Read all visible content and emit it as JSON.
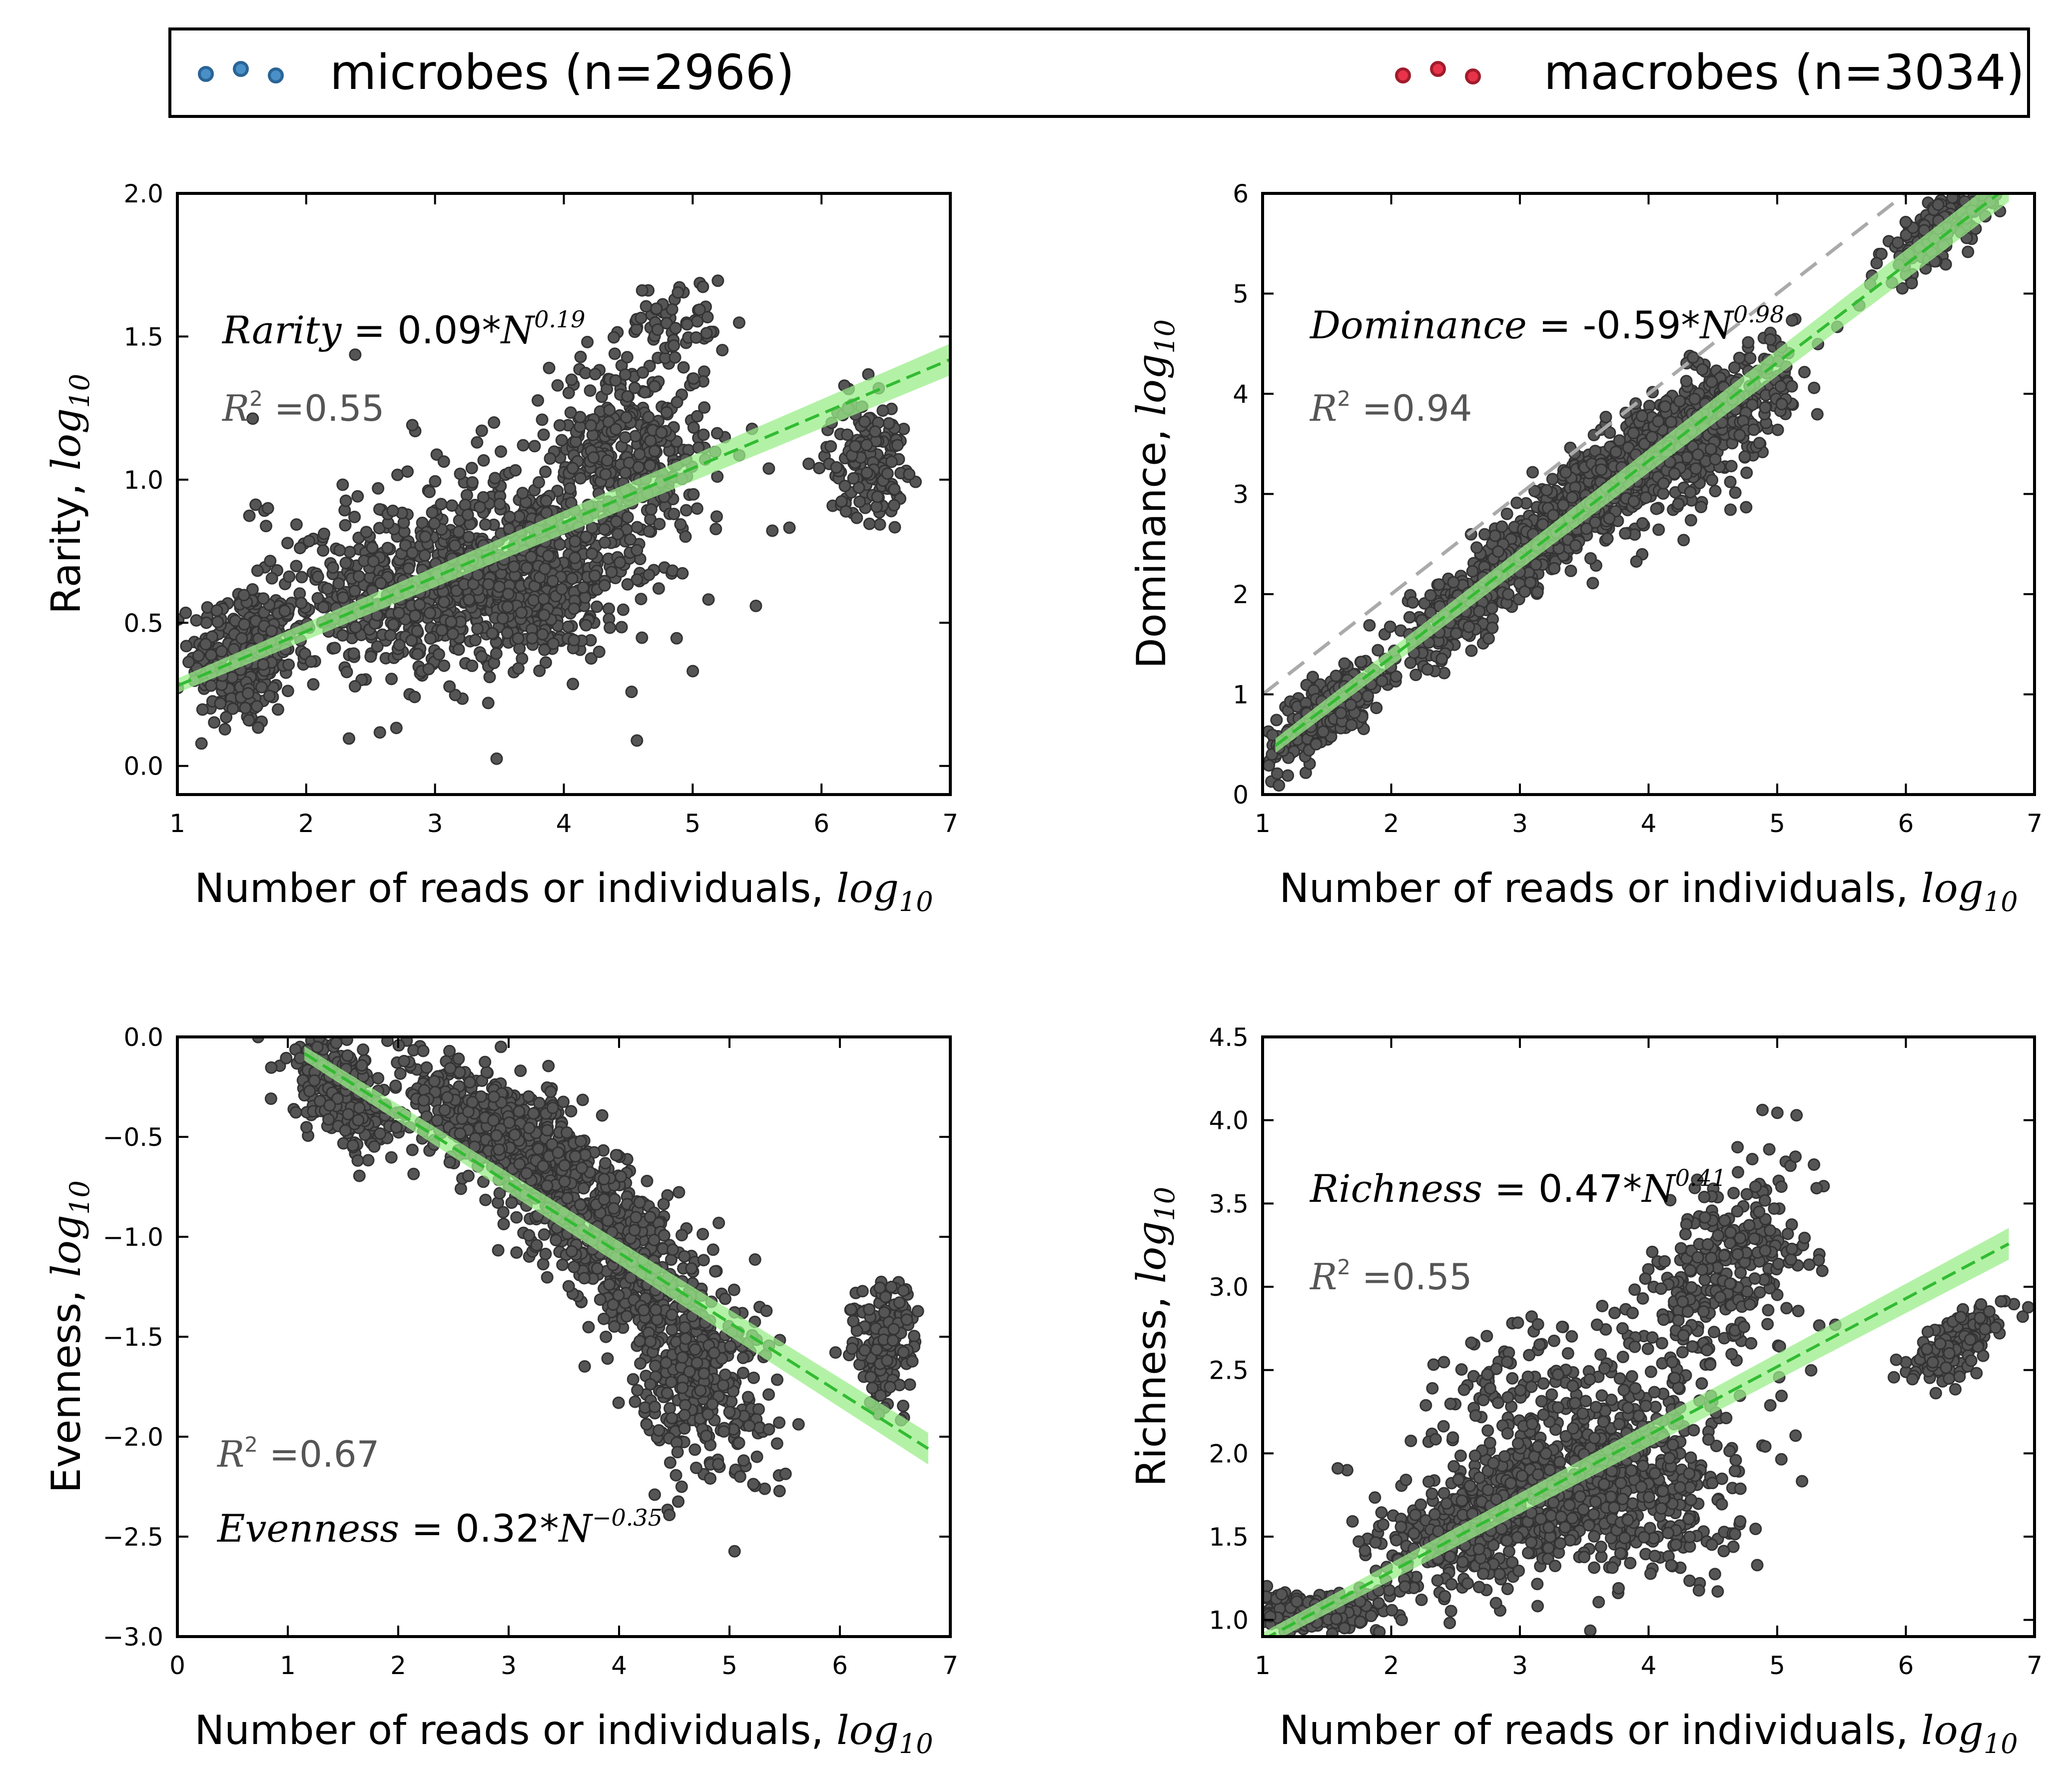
{
  "legend": {
    "items": [
      {
        "label": "microbes (n=2966)",
        "color": "#4a90c8",
        "edge": "#2a6496"
      },
      {
        "label": "macrobes (n=3034)",
        "color": "#e8334a",
        "edge": "#a01c2c"
      }
    ]
  },
  "colors": {
    "points": "#555555",
    "points_edge": "#333333",
    "fit_line": "#33bb33",
    "fit_band": "#99ee88",
    "reference_line": "#aaaaaa"
  },
  "panels": [
    {
      "id": "rarity",
      "xlabel_text": "Number of reads or individuals,",
      "xlabel_math": "log",
      "xlabel_sub": "10",
      "ylabel_text": "Rarity,",
      "ylabel_math": "log",
      "ylabel_sub": "10",
      "equation": {
        "var": "Rarity",
        "rhs": " = 0.09*",
        "base": "N",
        "exp": "0.19"
      },
      "r2": {
        "label": "R",
        "sup": "2",
        "value": " =0.55"
      }
    },
    {
      "id": "dominance",
      "xlabel_text": "Number of reads or individuals,",
      "xlabel_math": "log",
      "xlabel_sub": "10",
      "ylabel_text": "Dominance,",
      "ylabel_math": "log",
      "ylabel_sub": "10",
      "equation": {
        "var": "Dominance",
        "rhs": " = -0.59*",
        "base": "N",
        "exp": "0.98"
      },
      "r2": {
        "label": "R",
        "sup": "2",
        "value": " =0.94"
      }
    },
    {
      "id": "evenness",
      "xlabel_text": "Number of reads or individuals,",
      "xlabel_math": "log",
      "xlabel_sub": "10",
      "ylabel_text": "Evenness,",
      "ylabel_math": "log",
      "ylabel_sub": "10",
      "equation": {
        "var": "Evenness",
        "rhs": " = 0.32*",
        "base": "N",
        "exp": "−0.35"
      },
      "r2": {
        "label": "R",
        "sup": "2",
        "value": " =0.67"
      }
    },
    {
      "id": "richness",
      "xlabel_text": "Number of reads or individuals,",
      "xlabel_math": "log",
      "xlabel_sub": "10",
      "ylabel_text": "Richness,",
      "ylabel_math": "log",
      "ylabel_sub": "10",
      "equation": {
        "var": "Richness",
        "rhs": " = 0.47*",
        "base": "N",
        "exp": "0.41"
      },
      "r2": {
        "label": "R",
        "sup": "2",
        "value": " =0.55"
      }
    }
  ],
  "chart_data": [
    {
      "type": "scatter",
      "panel": "rarity",
      "xlim": [
        1,
        7
      ],
      "ylim": [
        -0.1,
        2.0
      ],
      "xticks": [
        "1",
        "2",
        "3",
        "4",
        "5",
        "6",
        "7"
      ],
      "xtick_values": [
        1,
        2,
        3,
        4,
        5,
        6,
        7
      ],
      "yticks": [
        "0.0",
        "0.5",
        "1.0",
        "1.5",
        "2.0"
      ],
      "ytick_values": [
        0.0,
        0.5,
        1.0,
        1.5,
        2.0
      ],
      "fit": {
        "slope": 0.19,
        "intercept": 0.09,
        "x_range": [
          1.0,
          7.0
        ]
      },
      "reference_line": null,
      "clusters": [
        {
          "cx": 1.5,
          "cy": 0.38,
          "sx": 0.2,
          "sy": 0.13,
          "n": 280
        },
        {
          "cx": 2.8,
          "cy": 0.58,
          "sx": 0.45,
          "sy": 0.12,
          "n": 420
        },
        {
          "cx": 3.7,
          "cy": 0.68,
          "sx": 0.4,
          "sy": 0.15,
          "n": 520
        },
        {
          "cx": 4.5,
          "cy": 1.1,
          "sx": 0.3,
          "sy": 0.18,
          "n": 380
        },
        {
          "cx": 4.9,
          "cy": 1.55,
          "sx": 0.18,
          "sy": 0.08,
          "n": 50
        },
        {
          "cx": 6.35,
          "cy": 1.08,
          "sx": 0.15,
          "sy": 0.1,
          "n": 170
        },
        {
          "cx": 3.4,
          "cy": 0.75,
          "sx": 0.9,
          "sy": 0.25,
          "n": 220
        }
      ]
    },
    {
      "type": "scatter",
      "panel": "dominance",
      "xlim": [
        1,
        7
      ],
      "ylim": [
        0,
        6
      ],
      "xticks": [
        "1",
        "2",
        "3",
        "4",
        "5",
        "6",
        "7"
      ],
      "xtick_values": [
        1,
        2,
        3,
        4,
        5,
        6,
        7
      ],
      "yticks": [
        "0",
        "1",
        "2",
        "3",
        "4",
        "5",
        "6"
      ],
      "ytick_values": [
        0,
        1,
        2,
        3,
        4,
        5,
        6
      ],
      "fit": {
        "slope": 0.98,
        "intercept": -0.59,
        "x_range": [
          1.1,
          6.8
        ]
      },
      "reference_line": {
        "slope": 1.0,
        "intercept": 0.0,
        "x_range": [
          1.0,
          6.1
        ]
      },
      "clusters": [
        {
          "cx": 1.5,
          "cy": 0.85,
          "sx": 0.25,
          "sy": 0.18,
          "slope": 0.95,
          "n": 260
        },
        {
          "cx": 2.6,
          "cy": 1.9,
          "sx": 0.3,
          "sy": 0.2,
          "slope": 0.95,
          "n": 300
        },
        {
          "cx": 3.5,
          "cy": 2.95,
          "sx": 0.45,
          "sy": 0.22,
          "slope": 0.98,
          "n": 650
        },
        {
          "cx": 4.4,
          "cy": 3.6,
          "sx": 0.35,
          "sy": 0.3,
          "slope": 0.9,
          "n": 500
        },
        {
          "cx": 6.3,
          "cy": 5.7,
          "sx": 0.25,
          "sy": 0.18,
          "slope": 0.9,
          "n": 170
        }
      ]
    },
    {
      "type": "scatter",
      "panel": "evenness",
      "xlim": [
        0,
        7
      ],
      "ylim": [
        -3.0,
        0.0
      ],
      "xticks": [
        "0",
        "1",
        "2",
        "3",
        "4",
        "5",
        "6",
        "7"
      ],
      "xtick_values": [
        0,
        1,
        2,
        3,
        4,
        5,
        6,
        7
      ],
      "yticks": [
        "0.0",
        "−0.5",
        "−1.0",
        "−1.5",
        "−2.0",
        "−2.5",
        "−3.0"
      ],
      "ytick_values": [
        0.0,
        -0.5,
        -1.0,
        -1.5,
        -2.0,
        -2.5,
        -3.0
      ],
      "fit": {
        "slope": -0.35,
        "intercept": 0.32,
        "x_range": [
          1.15,
          6.8
        ]
      },
      "reference_line": null,
      "clusters": [
        {
          "cx": 1.5,
          "cy": -0.3,
          "sx": 0.25,
          "sy": 0.12,
          "slope": -0.35,
          "n": 260
        },
        {
          "cx": 3.0,
          "cy": -0.5,
          "sx": 0.5,
          "sy": 0.14,
          "slope": -0.3,
          "n": 620
        },
        {
          "cx": 4.0,
          "cy": -1.05,
          "sx": 0.45,
          "sy": 0.2,
          "slope": -0.35,
          "n": 520
        },
        {
          "cx": 4.7,
          "cy": -1.75,
          "sx": 0.35,
          "sy": 0.22,
          "slope": -0.2,
          "n": 320
        },
        {
          "cx": 6.4,
          "cy": -1.55,
          "sx": 0.15,
          "sy": 0.16,
          "slope": 0,
          "n": 170
        }
      ]
    },
    {
      "type": "scatter",
      "panel": "richness",
      "xlim": [
        1,
        7
      ],
      "ylim": [
        0.9,
        4.5
      ],
      "xticks": [
        "1",
        "2",
        "3",
        "4",
        "5",
        "6",
        "7"
      ],
      "xtick_values": [
        1,
        2,
        3,
        4,
        5,
        6,
        7
      ],
      "yticks": [
        "1.0",
        "1.5",
        "2.0",
        "2.5",
        "3.0",
        "3.5",
        "4.0",
        "4.5"
      ],
      "ytick_values": [
        1.0,
        1.5,
        2.0,
        2.5,
        3.0,
        3.5,
        4.0,
        4.5
      ],
      "fit": {
        "slope": 0.41,
        "intercept": 0.47,
        "x_range": [
          1.0,
          6.8
        ]
      },
      "reference_line": null,
      "clusters": [
        {
          "cx": 1.4,
          "cy": 1.05,
          "sx": 0.25,
          "sy": 0.06,
          "n": 240
        },
        {
          "cx": 2.9,
          "cy": 1.65,
          "sx": 0.5,
          "sy": 0.2,
          "slope": 0.35,
          "n": 650
        },
        {
          "cx": 3.9,
          "cy": 1.8,
          "sx": 0.4,
          "sy": 0.28,
          "n": 420
        },
        {
          "cx": 4.6,
          "cy": 3.1,
          "sx": 0.35,
          "sy": 0.3,
          "slope": 0.5,
          "n": 330
        },
        {
          "cx": 3.2,
          "cy": 2.3,
          "sx": 0.5,
          "sy": 0.25,
          "n": 160
        },
        {
          "cx": 6.4,
          "cy": 2.65,
          "sx": 0.18,
          "sy": 0.09,
          "slope": 0.4,
          "n": 170
        }
      ]
    }
  ]
}
